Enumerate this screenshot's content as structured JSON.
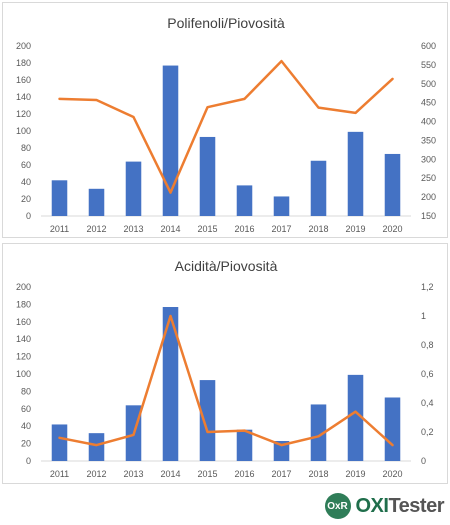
{
  "chart_data": [
    {
      "type": "bar",
      "title": "Polifenoli/Piovosità",
      "categories": [
        "2011",
        "2012",
        "2013",
        "2014",
        "2015",
        "2016",
        "2017",
        "2018",
        "2019",
        "2020"
      ],
      "series": [
        {
          "type": "bar",
          "axis": "left",
          "color": "#4472C4",
          "values": [
            42,
            32,
            64,
            177,
            93,
            36,
            23,
            65,
            99,
            73
          ]
        },
        {
          "type": "line",
          "axis": "right",
          "color": "#ED7D31",
          "values": [
            460,
            457,
            412,
            212,
            438,
            460,
            560,
            437,
            423,
            513
          ]
        }
      ],
      "ylim": [
        0,
        200
      ],
      "yticks": [
        "0",
        "20",
        "40",
        "60",
        "80",
        "100",
        "120",
        "140",
        "160",
        "180",
        "200"
      ],
      "y2lim": [
        150,
        600
      ],
      "y2ticks": [
        "150",
        "200",
        "250",
        "300",
        "350",
        "400",
        "450",
        "500",
        "550",
        "600"
      ],
      "grid": false,
      "legend": "none"
    },
    {
      "type": "bar",
      "title": "Acidità/Piovosità",
      "categories": [
        "2011",
        "2012",
        "2013",
        "2014",
        "2015",
        "2016",
        "2017",
        "2018",
        "2019",
        "2020"
      ],
      "series": [
        {
          "type": "bar",
          "axis": "left",
          "color": "#4472C4",
          "values": [
            42,
            32,
            64,
            177,
            93,
            36,
            23,
            65,
            99,
            73
          ]
        },
        {
          "type": "line",
          "axis": "right",
          "color": "#ED7D31",
          "values": [
            0.16,
            0.11,
            0.18,
            1.0,
            0.2,
            0.21,
            0.11,
            0.17,
            0.34,
            0.11
          ]
        }
      ],
      "ylim": [
        0,
        200
      ],
      "yticks": [
        "0",
        "20",
        "40",
        "60",
        "80",
        "100",
        "120",
        "140",
        "160",
        "180",
        "200"
      ],
      "y2lim": [
        0,
        1.2
      ],
      "y2ticks": [
        "0",
        "0,2",
        "0,4",
        "0,6",
        "0,8",
        "1",
        "1,2"
      ],
      "grid": false,
      "legend": "none"
    }
  ],
  "footer": {
    "logo_mark": "OxR",
    "brand_oxi": "OXI",
    "brand_tester": "Tester"
  }
}
